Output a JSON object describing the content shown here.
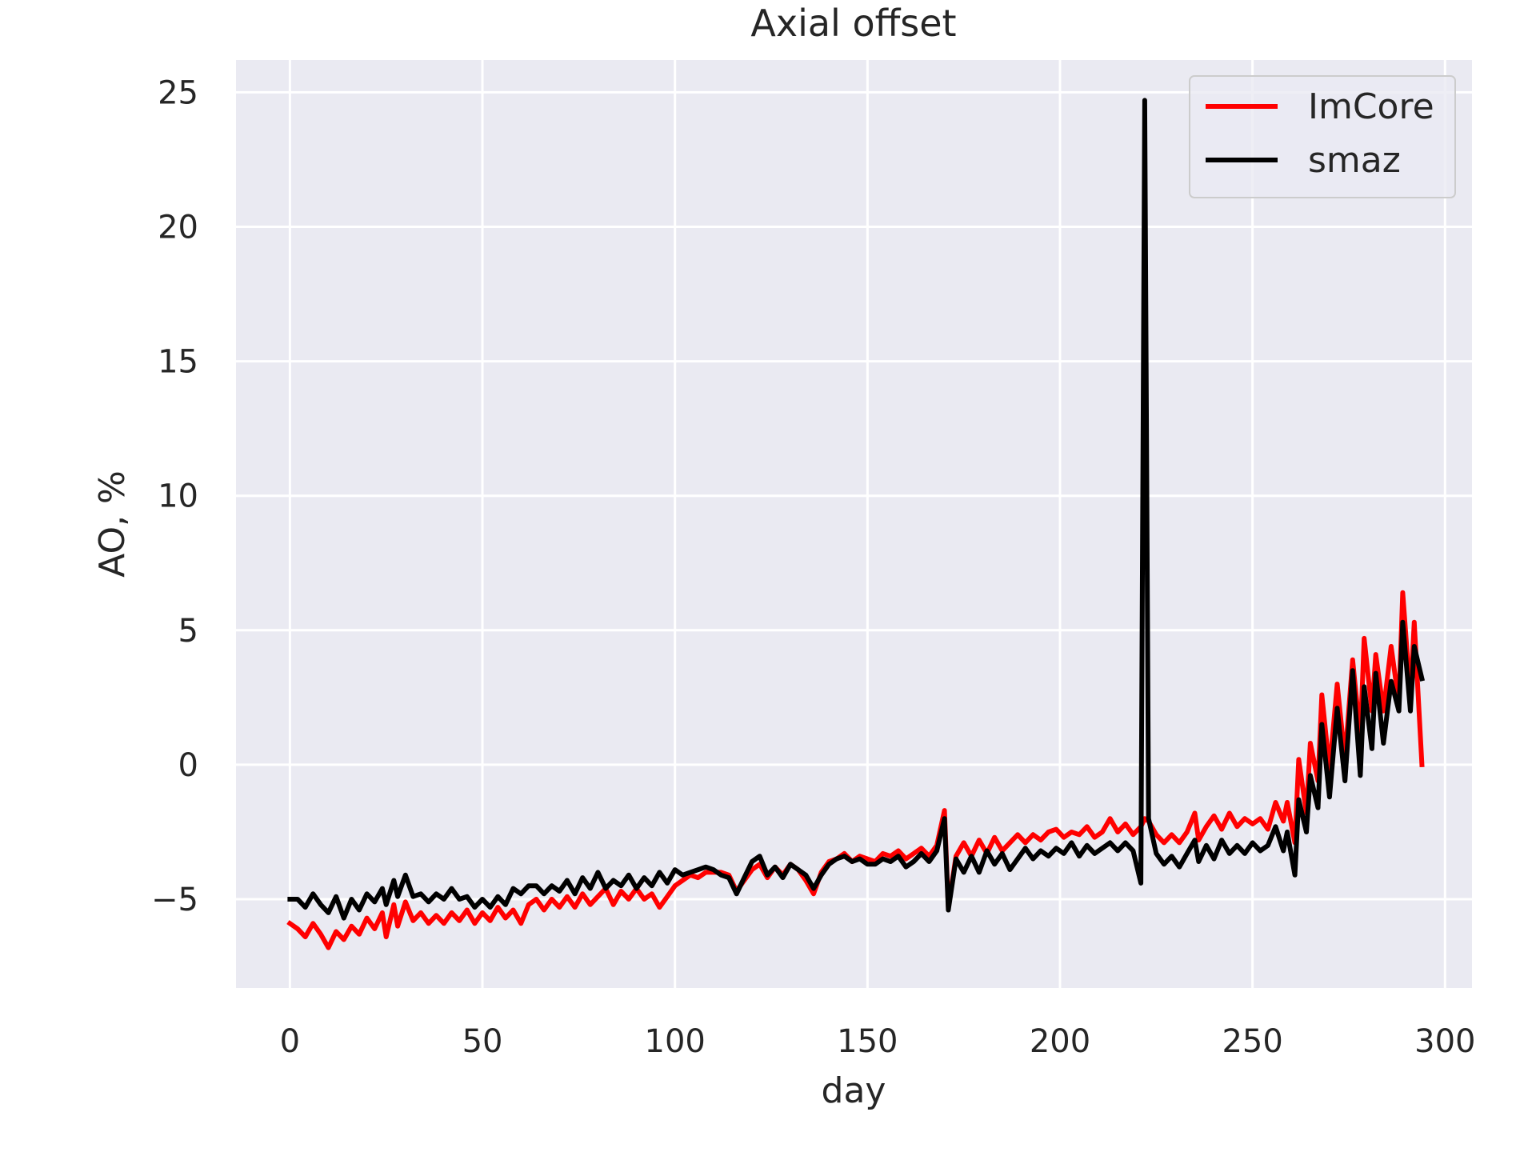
{
  "chart_data": {
    "type": "line",
    "title": "Axial offset",
    "xlabel": "day",
    "ylabel": "AO, %",
    "xlim": [
      -14,
      307
    ],
    "ylim": [
      -8.3,
      26.2
    ],
    "xticks": [
      0,
      50,
      100,
      150,
      200,
      250,
      300
    ],
    "yticks": [
      -5,
      0,
      5,
      10,
      15,
      20,
      25
    ],
    "ytick_labels": [
      "−5",
      "0",
      "5",
      "10",
      "15",
      "20",
      "25"
    ],
    "grid": true,
    "legend_position": "top-right",
    "background": "#eaeaf2",
    "series": [
      {
        "name": "ImCore",
        "color": "#ff0000",
        "points": [
          [
            0,
            -5.9
          ],
          [
            2,
            -6.1
          ],
          [
            4,
            -6.4
          ],
          [
            6,
            -5.9
          ],
          [
            8,
            -6.3
          ],
          [
            10,
            -6.8
          ],
          [
            12,
            -6.2
          ],
          [
            14,
            -6.5
          ],
          [
            16,
            -6.0
          ],
          [
            18,
            -6.3
          ],
          [
            20,
            -5.7
          ],
          [
            22,
            -6.1
          ],
          [
            24,
            -5.5
          ],
          [
            25,
            -6.4
          ],
          [
            27,
            -5.2
          ],
          [
            28,
            -6.0
          ],
          [
            30,
            -5.1
          ],
          [
            32,
            -5.8
          ],
          [
            34,
            -5.5
          ],
          [
            36,
            -5.9
          ],
          [
            38,
            -5.6
          ],
          [
            40,
            -5.9
          ],
          [
            42,
            -5.5
          ],
          [
            44,
            -5.8
          ],
          [
            46,
            -5.4
          ],
          [
            48,
            -5.9
          ],
          [
            50,
            -5.5
          ],
          [
            52,
            -5.8
          ],
          [
            54,
            -5.3
          ],
          [
            56,
            -5.7
          ],
          [
            58,
            -5.4
          ],
          [
            60,
            -5.9
          ],
          [
            62,
            -5.2
          ],
          [
            64,
            -5.0
          ],
          [
            66,
            -5.4
          ],
          [
            68,
            -5.0
          ],
          [
            70,
            -5.3
          ],
          [
            72,
            -4.9
          ],
          [
            74,
            -5.3
          ],
          [
            76,
            -4.8
          ],
          [
            78,
            -5.2
          ],
          [
            80,
            -4.9
          ],
          [
            82,
            -4.6
          ],
          [
            84,
            -5.2
          ],
          [
            86,
            -4.7
          ],
          [
            88,
            -5.0
          ],
          [
            90,
            -4.6
          ],
          [
            92,
            -5.0
          ],
          [
            94,
            -4.8
          ],
          [
            96,
            -5.3
          ],
          [
            98,
            -4.9
          ],
          [
            100,
            -4.5
          ],
          [
            102,
            -4.3
          ],
          [
            104,
            -4.1
          ],
          [
            106,
            -4.2
          ],
          [
            108,
            -4.0
          ],
          [
            110,
            -4.0
          ],
          [
            112,
            -4.0
          ],
          [
            114,
            -4.1
          ],
          [
            116,
            -4.7
          ],
          [
            118,
            -4.3
          ],
          [
            120,
            -3.9
          ],
          [
            122,
            -3.7
          ],
          [
            124,
            -4.2
          ],
          [
            126,
            -3.8
          ],
          [
            128,
            -4.1
          ],
          [
            130,
            -3.7
          ],
          [
            132,
            -3.9
          ],
          [
            134,
            -4.3
          ],
          [
            136,
            -4.8
          ],
          [
            138,
            -4.0
          ],
          [
            140,
            -3.6
          ],
          [
            142,
            -3.5
          ],
          [
            144,
            -3.3
          ],
          [
            146,
            -3.6
          ],
          [
            148,
            -3.4
          ],
          [
            150,
            -3.5
          ],
          [
            152,
            -3.6
          ],
          [
            154,
            -3.3
          ],
          [
            156,
            -3.4
          ],
          [
            158,
            -3.2
          ],
          [
            160,
            -3.5
          ],
          [
            162,
            -3.3
          ],
          [
            164,
            -3.1
          ],
          [
            166,
            -3.4
          ],
          [
            168,
            -3.0
          ],
          [
            170,
            -1.7
          ],
          [
            171,
            -5.3
          ],
          [
            173,
            -3.4
          ],
          [
            175,
            -2.9
          ],
          [
            177,
            -3.4
          ],
          [
            179,
            -2.8
          ],
          [
            181,
            -3.3
          ],
          [
            183,
            -2.7
          ],
          [
            185,
            -3.2
          ],
          [
            187,
            -2.9
          ],
          [
            189,
            -2.6
          ],
          [
            191,
            -2.9
          ],
          [
            193,
            -2.6
          ],
          [
            195,
            -2.8
          ],
          [
            197,
            -2.5
          ],
          [
            199,
            -2.4
          ],
          [
            201,
            -2.7
          ],
          [
            203,
            -2.5
          ],
          [
            205,
            -2.6
          ],
          [
            207,
            -2.3
          ],
          [
            209,
            -2.7
          ],
          [
            211,
            -2.5
          ],
          [
            213,
            -2.0
          ],
          [
            215,
            -2.5
          ],
          [
            217,
            -2.2
          ],
          [
            219,
            -2.6
          ],
          [
            221,
            -2.3
          ],
          [
            222,
            -2.0
          ],
          [
            223,
            -2.1
          ],
          [
            225,
            -2.6
          ],
          [
            227,
            -2.9
          ],
          [
            229,
            -2.6
          ],
          [
            231,
            -2.9
          ],
          [
            233,
            -2.5
          ],
          [
            235,
            -1.8
          ],
          [
            236,
            -2.8
          ],
          [
            238,
            -2.3
          ],
          [
            240,
            -1.9
          ],
          [
            242,
            -2.4
          ],
          [
            244,
            -1.8
          ],
          [
            246,
            -2.3
          ],
          [
            248,
            -2.0
          ],
          [
            250,
            -2.2
          ],
          [
            252,
            -2.0
          ],
          [
            254,
            -2.4
          ],
          [
            256,
            -1.4
          ],
          [
            258,
            -2.1
          ],
          [
            259,
            -1.4
          ],
          [
            261,
            -2.9
          ],
          [
            262,
            0.2
          ],
          [
            264,
            -1.8
          ],
          [
            265,
            0.8
          ],
          [
            267,
            -0.6
          ],
          [
            268,
            2.6
          ],
          [
            270,
            -0.2
          ],
          [
            272,
            3.0
          ],
          [
            274,
            0.2
          ],
          [
            276,
            3.9
          ],
          [
            278,
            1.0
          ],
          [
            279,
            4.7
          ],
          [
            281,
            2.0
          ],
          [
            282,
            4.1
          ],
          [
            284,
            2.0
          ],
          [
            286,
            4.4
          ],
          [
            288,
            2.3
          ],
          [
            289,
            6.4
          ],
          [
            291,
            2.5
          ],
          [
            292,
            5.3
          ],
          [
            294,
            0.0
          ]
        ]
      },
      {
        "name": "smaz",
        "color": "#000000",
        "points": [
          [
            0,
            -5.0
          ],
          [
            2,
            -5.0
          ],
          [
            4,
            -5.3
          ],
          [
            6,
            -4.8
          ],
          [
            8,
            -5.2
          ],
          [
            10,
            -5.5
          ],
          [
            12,
            -4.9
          ],
          [
            14,
            -5.7
          ],
          [
            16,
            -5.0
          ],
          [
            18,
            -5.4
          ],
          [
            20,
            -4.8
          ],
          [
            22,
            -5.1
          ],
          [
            24,
            -4.6
          ],
          [
            25,
            -5.2
          ],
          [
            27,
            -4.3
          ],
          [
            28,
            -4.9
          ],
          [
            30,
            -4.1
          ],
          [
            32,
            -4.9
          ],
          [
            34,
            -4.8
          ],
          [
            36,
            -5.1
          ],
          [
            38,
            -4.8
          ],
          [
            40,
            -5.0
          ],
          [
            42,
            -4.6
          ],
          [
            44,
            -5.0
          ],
          [
            46,
            -4.9
          ],
          [
            48,
            -5.3
          ],
          [
            50,
            -5.0
          ],
          [
            52,
            -5.3
          ],
          [
            54,
            -4.9
          ],
          [
            56,
            -5.2
          ],
          [
            58,
            -4.6
          ],
          [
            60,
            -4.8
          ],
          [
            62,
            -4.5
          ],
          [
            64,
            -4.5
          ],
          [
            66,
            -4.8
          ],
          [
            68,
            -4.5
          ],
          [
            70,
            -4.7
          ],
          [
            72,
            -4.3
          ],
          [
            74,
            -4.8
          ],
          [
            76,
            -4.2
          ],
          [
            78,
            -4.6
          ],
          [
            80,
            -4.0
          ],
          [
            82,
            -4.6
          ],
          [
            84,
            -4.3
          ],
          [
            86,
            -4.5
          ],
          [
            88,
            -4.1
          ],
          [
            90,
            -4.6
          ],
          [
            92,
            -4.2
          ],
          [
            94,
            -4.5
          ],
          [
            96,
            -4.0
          ],
          [
            98,
            -4.4
          ],
          [
            100,
            -3.9
          ],
          [
            102,
            -4.1
          ],
          [
            104,
            -4.0
          ],
          [
            106,
            -3.9
          ],
          [
            108,
            -3.8
          ],
          [
            110,
            -3.9
          ],
          [
            112,
            -4.1
          ],
          [
            114,
            -4.2
          ],
          [
            116,
            -4.8
          ],
          [
            118,
            -4.2
          ],
          [
            120,
            -3.6
          ],
          [
            122,
            -3.4
          ],
          [
            124,
            -4.1
          ],
          [
            126,
            -3.8
          ],
          [
            128,
            -4.2
          ],
          [
            130,
            -3.7
          ],
          [
            132,
            -3.9
          ],
          [
            134,
            -4.1
          ],
          [
            136,
            -4.6
          ],
          [
            138,
            -4.1
          ],
          [
            140,
            -3.7
          ],
          [
            142,
            -3.5
          ],
          [
            144,
            -3.4
          ],
          [
            146,
            -3.6
          ],
          [
            148,
            -3.5
          ],
          [
            150,
            -3.7
          ],
          [
            152,
            -3.7
          ],
          [
            154,
            -3.5
          ],
          [
            156,
            -3.6
          ],
          [
            158,
            -3.4
          ],
          [
            160,
            -3.8
          ],
          [
            162,
            -3.6
          ],
          [
            164,
            -3.3
          ],
          [
            166,
            -3.6
          ],
          [
            168,
            -3.2
          ],
          [
            170,
            -2.0
          ],
          [
            171,
            -5.4
          ],
          [
            173,
            -3.5
          ],
          [
            175,
            -4.0
          ],
          [
            177,
            -3.4
          ],
          [
            179,
            -4.0
          ],
          [
            181,
            -3.2
          ],
          [
            183,
            -3.7
          ],
          [
            185,
            -3.3
          ],
          [
            187,
            -3.9
          ],
          [
            189,
            -3.5
          ],
          [
            191,
            -3.1
          ],
          [
            193,
            -3.5
          ],
          [
            195,
            -3.2
          ],
          [
            197,
            -3.4
          ],
          [
            199,
            -3.1
          ],
          [
            201,
            -3.3
          ],
          [
            203,
            -2.9
          ],
          [
            205,
            -3.4
          ],
          [
            207,
            -3.0
          ],
          [
            209,
            -3.3
          ],
          [
            211,
            -3.1
          ],
          [
            213,
            -2.9
          ],
          [
            215,
            -3.2
          ],
          [
            217,
            -2.9
          ],
          [
            219,
            -3.2
          ],
          [
            221,
            -4.4
          ],
          [
            222,
            24.7
          ],
          [
            223,
            -2.0
          ],
          [
            225,
            -3.3
          ],
          [
            227,
            -3.7
          ],
          [
            229,
            -3.4
          ],
          [
            231,
            -3.8
          ],
          [
            233,
            -3.3
          ],
          [
            235,
            -2.8
          ],
          [
            236,
            -3.6
          ],
          [
            238,
            -3.0
          ],
          [
            240,
            -3.5
          ],
          [
            242,
            -2.8
          ],
          [
            244,
            -3.3
          ],
          [
            246,
            -3.0
          ],
          [
            248,
            -3.3
          ],
          [
            250,
            -2.9
          ],
          [
            252,
            -3.2
          ],
          [
            254,
            -3.0
          ],
          [
            256,
            -2.3
          ],
          [
            258,
            -3.2
          ],
          [
            259,
            -2.5
          ],
          [
            261,
            -4.1
          ],
          [
            262,
            -1.3
          ],
          [
            264,
            -2.5
          ],
          [
            265,
            -0.4
          ],
          [
            267,
            -1.6
          ],
          [
            268,
            1.5
          ],
          [
            270,
            -1.2
          ],
          [
            272,
            2.1
          ],
          [
            274,
            -0.6
          ],
          [
            276,
            3.5
          ],
          [
            278,
            -0.4
          ],
          [
            279,
            2.9
          ],
          [
            281,
            0.6
          ],
          [
            282,
            3.4
          ],
          [
            284,
            0.8
          ],
          [
            286,
            3.1
          ],
          [
            288,
            2.0
          ],
          [
            289,
            5.3
          ],
          [
            291,
            2.0
          ],
          [
            292,
            4.4
          ],
          [
            294,
            3.2
          ]
        ]
      }
    ]
  }
}
